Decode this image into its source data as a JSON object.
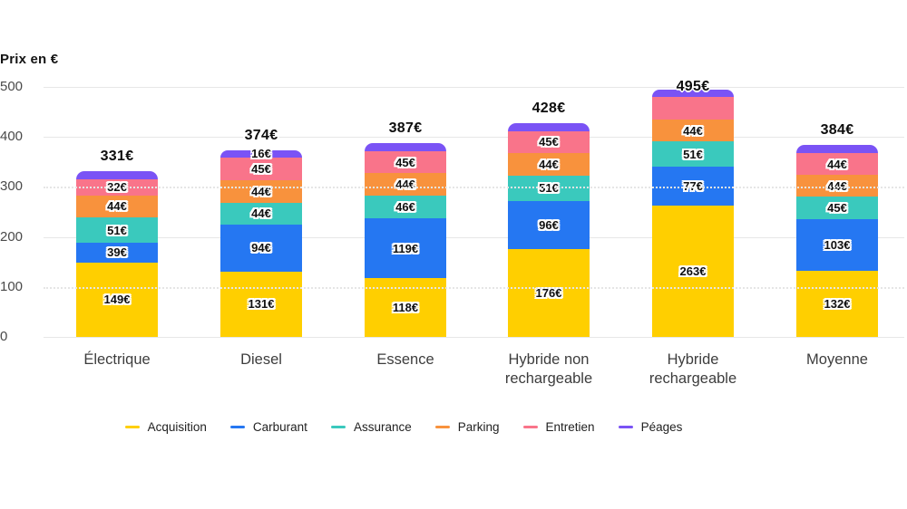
{
  "chart_data": {
    "type": "bar",
    "stacked": true,
    "title": "Prix en €",
    "categories": [
      "Électrique",
      "Diesel",
      "Essence",
      "Hybride non\nrechargeable",
      "Hybride\nrechargeable",
      "Moyenne"
    ],
    "totals": [
      331,
      374,
      387,
      428,
      495,
      384
    ],
    "totals_display": [
      "331€",
      "374€",
      "387€",
      "428€",
      "495€",
      "384€"
    ],
    "ylim": [
      0,
      500
    ],
    "yticks": [
      0,
      100,
      200,
      300,
      400,
      500
    ],
    "grid": true,
    "legend_position": "bottom",
    "series": [
      {
        "name": "Acquisition",
        "color": "#FFCF00",
        "values": [
          149,
          131,
          118,
          176,
          263,
          132
        ],
        "labels": [
          "149€",
          "131€",
          "118€",
          "176€",
          "263€",
          "132€"
        ]
      },
      {
        "name": "Carburant",
        "color": "#2577F2",
        "values": [
          39,
          94,
          119,
          96,
          77,
          103
        ],
        "labels": [
          "39€",
          "94€",
          "119€",
          "96€",
          "77€",
          "103€"
        ]
      },
      {
        "name": "Assurance",
        "color": "#3AC9BD",
        "values": [
          51,
          44,
          46,
          51,
          51,
          45
        ],
        "labels": [
          "51€",
          "44€",
          "46€",
          "51€",
          "51€",
          "45€"
        ]
      },
      {
        "name": "Parking",
        "color": "#F8923D",
        "values": [
          44,
          44,
          44,
          44,
          44,
          44
        ],
        "labels": [
          "44€",
          "44€",
          "44€",
          "44€",
          "44€",
          "44€"
        ]
      },
      {
        "name": "Entretien",
        "color": "#F9748A",
        "values": [
          32,
          45,
          45,
          45,
          45,
          44
        ],
        "labels": [
          "32€",
          "45€",
          "45€",
          "45€",
          "",
          "44€"
        ]
      },
      {
        "name": "Péages",
        "color": "#7A53F5",
        "values": [
          16,
          16,
          15,
          16,
          15,
          16
        ],
        "labels": [
          "",
          "16€",
          "",
          "",
          "",
          ""
        ]
      }
    ]
  }
}
